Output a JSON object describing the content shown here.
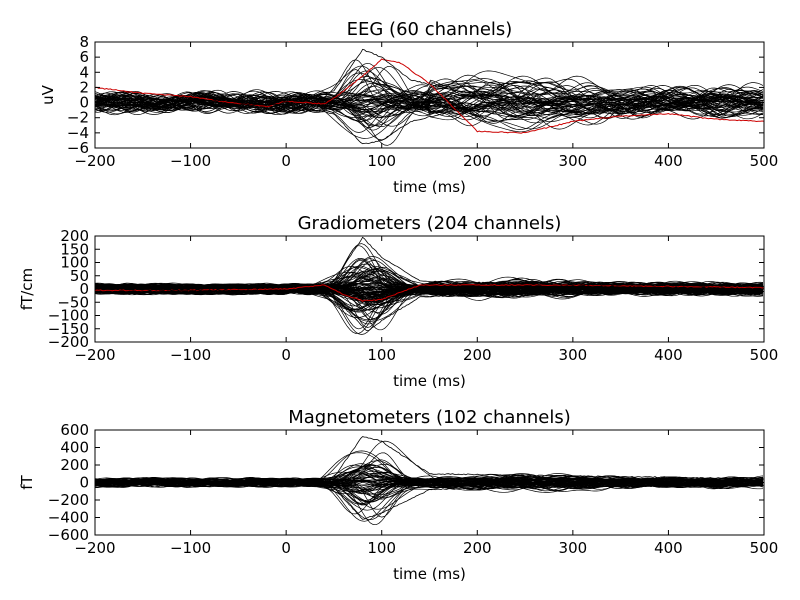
{
  "chart_data": [
    {
      "type": "line",
      "title": "EEG (60 channels)",
      "xlabel": "time (ms)",
      "ylabel": "uV",
      "xlim": [
        -200,
        500
      ],
      "ylim": [
        -6,
        8
      ],
      "xticks": [
        "−200",
        "−100",
        "0",
        "100",
        "200",
        "300",
        "400",
        "500"
      ],
      "xtick_values": [
        -200,
        -100,
        0,
        100,
        200,
        300,
        400,
        500
      ],
      "yticks": [
        "−6",
        "−4",
        "−2",
        "0",
        "2",
        "4",
        "6",
        "8"
      ],
      "ytick_values": [
        -6,
        -4,
        -2,
        0,
        2,
        4,
        6,
        8
      ],
      "n_channels": 60,
      "grid": false,
      "colors": {
        "channels": "#000000",
        "highlight": "#cc0000"
      },
      "series": [
        {
          "x": [
            -200,
            -150,
            -100,
            -60,
            -20,
            0,
            40,
            60,
            80,
            100,
            120,
            150,
            200,
            250,
            300,
            350,
            400,
            450,
            500
          ],
          "values": [
            2,
            1.2,
            0.8,
            0,
            -0.5,
            0.2,
            -0.2,
            1.5,
            3.5,
            5.7,
            5.2,
            2.5,
            -3.8,
            -4,
            -2.5,
            -1.8,
            -1.5,
            -2.2,
            -2.5
          ]
        },
        {
          "x": [
            -200,
            -100,
            0,
            50,
            80,
            100,
            130,
            180,
            250,
            350,
            500
          ],
          "values": [
            0.5,
            0.3,
            0.2,
            1.5,
            7,
            6,
            3,
            1.5,
            0.5,
            0.5,
            0
          ]
        },
        {
          "x": [
            -200,
            -100,
            0,
            50,
            80,
            100,
            130,
            180,
            250,
            350,
            500
          ],
          "values": [
            -0.5,
            -0.3,
            -0.2,
            -1.5,
            -5.5,
            -5,
            -2.5,
            -1,
            -0.5,
            -0.2,
            0.3
          ]
        }
      ]
    },
    {
      "type": "line",
      "title": "Gradiometers (204 channels)",
      "xlabel": "time (ms)",
      "ylabel": "fT/cm",
      "xlim": [
        -200,
        500
      ],
      "ylim": [
        -200,
        200
      ],
      "xticks": [
        "−200",
        "−100",
        "0",
        "100",
        "200",
        "300",
        "400",
        "500"
      ],
      "xtick_values": [
        -200,
        -100,
        0,
        100,
        200,
        300,
        400,
        500
      ],
      "yticks": [
        "−200",
        "−150",
        "−100",
        "−50",
        "0",
        "50",
        "100",
        "150",
        "200"
      ],
      "ytick_values": [
        -200,
        -150,
        -100,
        -50,
        0,
        50,
        100,
        150,
        200
      ],
      "n_channels": 204,
      "grid": false,
      "colors": {
        "channels": "#000000",
        "highlight": "#cc0000"
      },
      "series": [
        {
          "x": [
            -200,
            -100,
            0,
            40,
            60,
            80,
            100,
            140,
            200,
            300,
            400,
            500
          ],
          "values": [
            -5,
            -5,
            0,
            15,
            -20,
            -45,
            -40,
            15,
            15,
            15,
            10,
            5
          ]
        },
        {
          "x": [
            -200,
            -100,
            0,
            50,
            80,
            100,
            140,
            250,
            350,
            500
          ],
          "values": [
            0,
            5,
            5,
            30,
            195,
            120,
            30,
            20,
            15,
            10
          ]
        },
        {
          "x": [
            -200,
            -100,
            0,
            50,
            85,
            100,
            140,
            250,
            350,
            500
          ],
          "values": [
            0,
            -5,
            -5,
            -30,
            -160,
            -120,
            -30,
            -15,
            -10,
            -10
          ]
        }
      ]
    },
    {
      "type": "line",
      "title": "Magnetometers (102 channels)",
      "xlabel": "time (ms)",
      "ylabel": "fT",
      "xlim": [
        -200,
        500
      ],
      "ylim": [
        -600,
        600
      ],
      "xticks": [
        "−200",
        "−100",
        "0",
        "100",
        "200",
        "300",
        "400",
        "500"
      ],
      "xtick_values": [
        -200,
        -100,
        0,
        100,
        200,
        300,
        400,
        500
      ],
      "yticks": [
        "−600",
        "−400",
        "−200",
        "0",
        "200",
        "400",
        "600"
      ],
      "ytick_values": [
        -600,
        -400,
        -200,
        0,
        200,
        400,
        600
      ],
      "n_channels": 102,
      "grid": false,
      "colors": {
        "channels": "#000000"
      },
      "series": [
        {
          "x": [
            -200,
            -100,
            0,
            50,
            80,
            100,
            150,
            250,
            400,
            500
          ],
          "values": [
            0,
            20,
            0,
            60,
            530,
            470,
            100,
            80,
            60,
            40
          ]
        },
        {
          "x": [
            -200,
            -100,
            0,
            50,
            80,
            100,
            150,
            250,
            400,
            500
          ],
          "values": [
            0,
            -20,
            0,
            -60,
            -420,
            -350,
            -80,
            -50,
            -40,
            -30
          ]
        }
      ]
    }
  ]
}
